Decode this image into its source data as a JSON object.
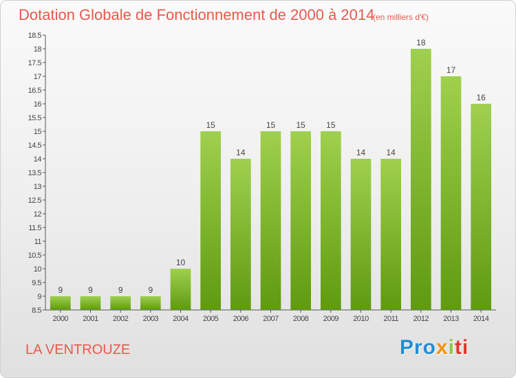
{
  "header": {
    "title": "Dotation Globale de Fonctionnement de 2000 à 2014",
    "subtitle": "(en milliers d'€)"
  },
  "footer": {
    "town": "LA VENTROUZE",
    "logo_parts": [
      "Pro",
      "x",
      "i",
      "ti"
    ]
  },
  "colors": {
    "title": "#e8594a",
    "bar_top": "#9fd04e",
    "bar_bottom": "#5f9a10",
    "axis": "#555555",
    "logo": [
      "#1f8fd6",
      "#f39200",
      "#8cc63f",
      "#e4342a"
    ]
  },
  "chart_data": {
    "type": "bar",
    "categories": [
      "2000",
      "2001",
      "2002",
      "2003",
      "2004",
      "2005",
      "2006",
      "2007",
      "2008",
      "2009",
      "2010",
      "2011",
      "2012",
      "2013",
      "2014"
    ],
    "values": [
      9,
      9,
      9,
      9,
      10,
      15,
      14,
      15,
      15,
      15,
      14,
      14,
      18,
      17,
      16
    ],
    "title": "Dotation Globale de Fonctionnement de 2000 à 2014",
    "subtitle": "(en milliers d'€)",
    "xlabel": "",
    "ylabel": "",
    "ylim": [
      8.5,
      18.5
    ],
    "ytick_step": 0.5,
    "yticks": [
      "8.5",
      "9",
      "9.5",
      "10",
      "10.5",
      "11",
      "11.5",
      "12",
      "12.5",
      "13",
      "13.5",
      "14",
      "14.5",
      "15",
      "15.5",
      "16",
      "16.5",
      "17",
      "17.5",
      "18",
      "18.5"
    ],
    "grid": false,
    "legend": "none"
  }
}
